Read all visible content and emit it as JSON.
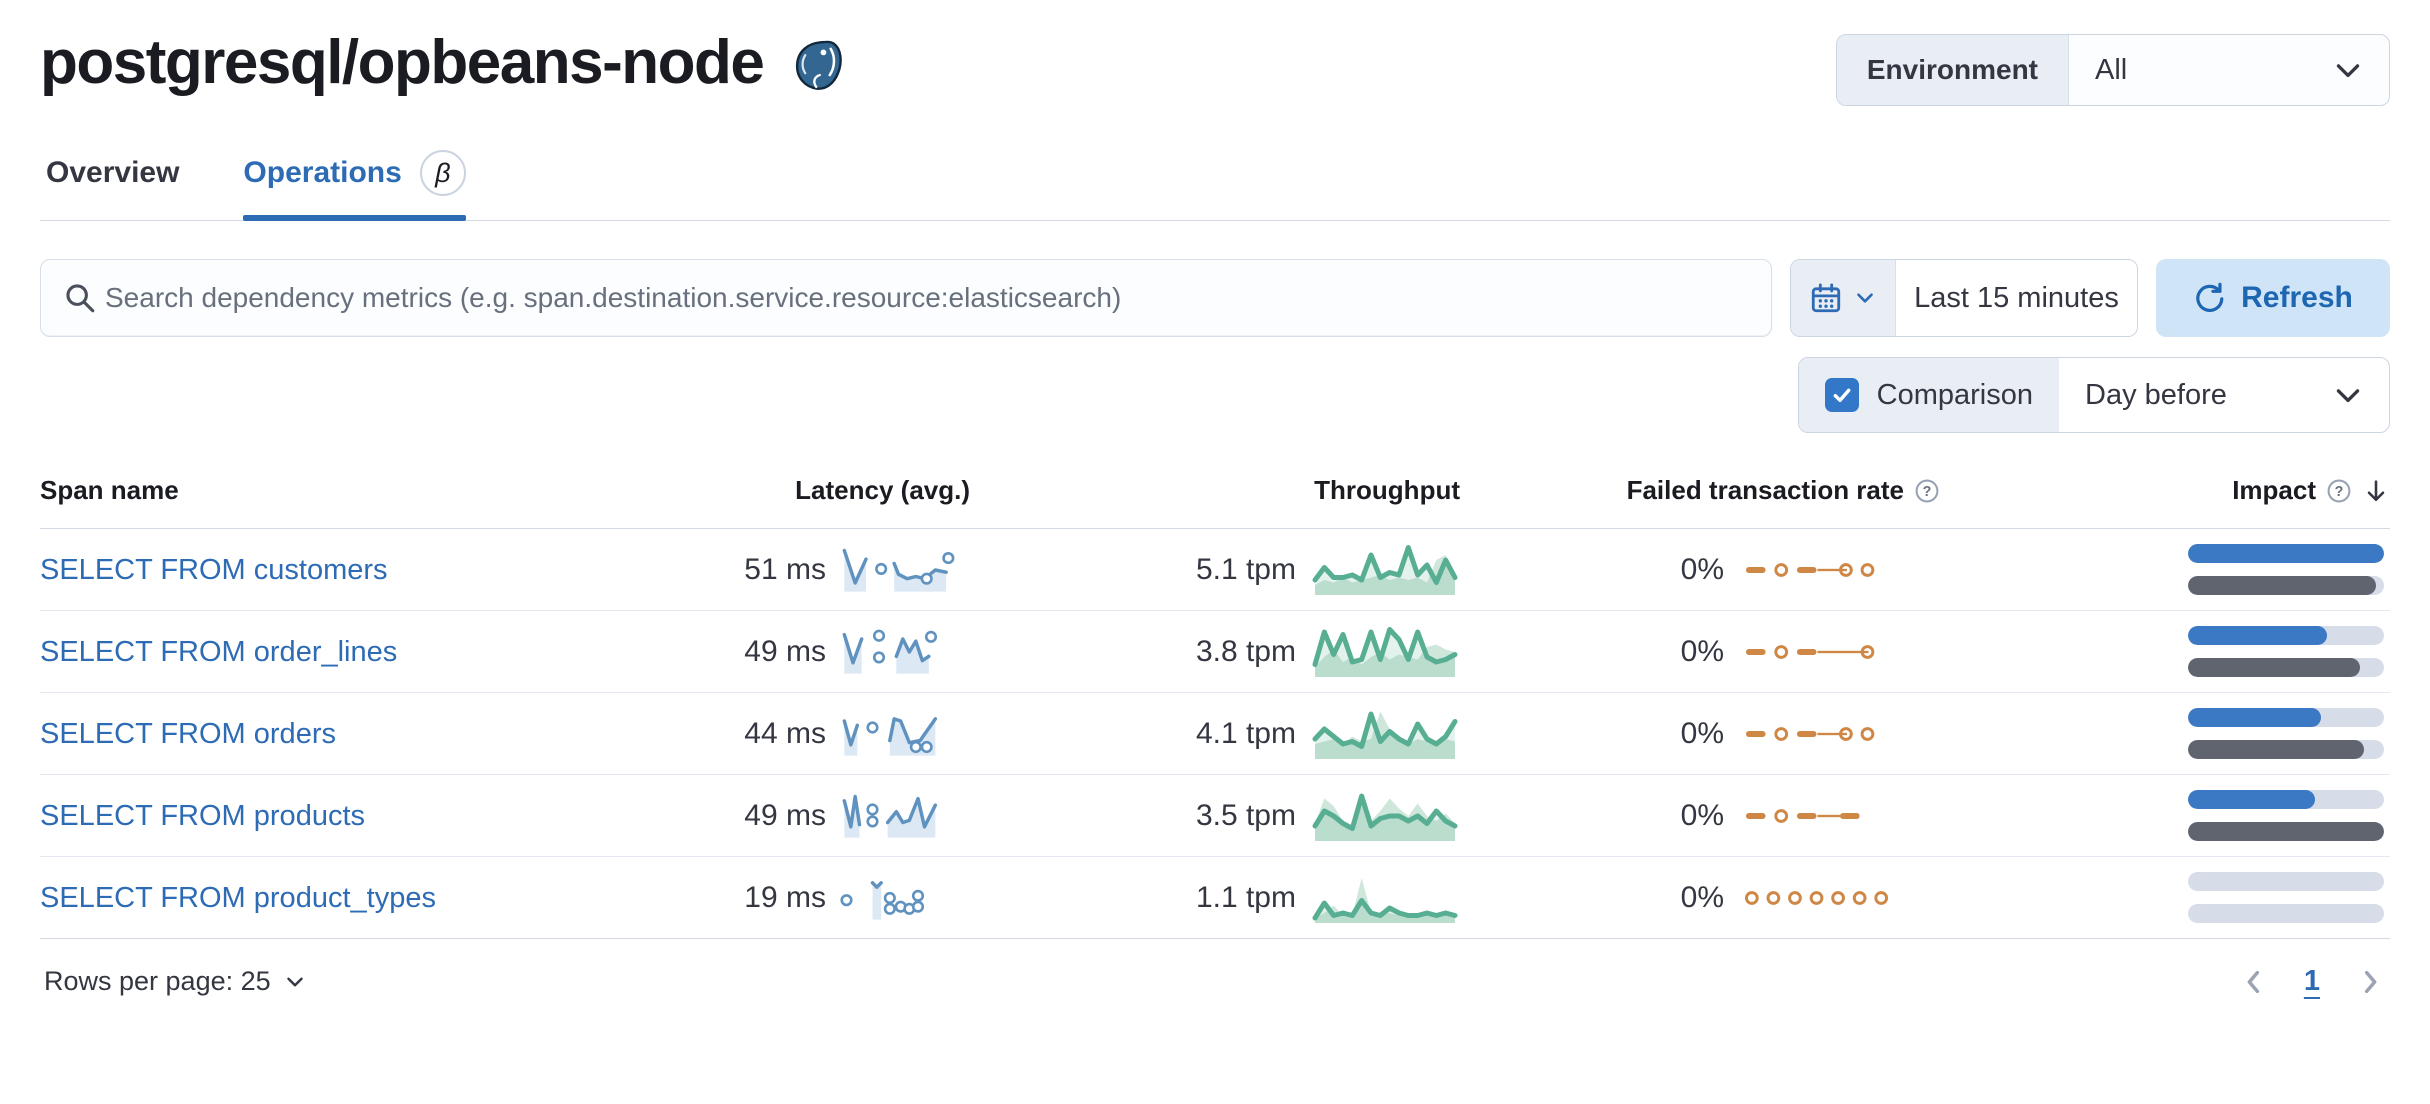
{
  "header": {
    "title": "postgresql/opbeans-node",
    "logo": "postgresql-elephant-icon",
    "environment_label": "Environment",
    "environment_value": "All"
  },
  "tabs": [
    {
      "label": "Overview",
      "active": false
    },
    {
      "label": "Operations",
      "active": true,
      "badge": "β"
    }
  ],
  "toolbar": {
    "search_placeholder": "Search dependency metrics (e.g. span.destination.service.resource:elasticsearch)",
    "time_range": "Last 15 minutes",
    "refresh_label": "Refresh",
    "comparison_label": "Comparison",
    "comparison_checked": true,
    "comparison_value": "Day before"
  },
  "table": {
    "columns": [
      "Span name",
      "Latency (avg.)",
      "Throughput",
      "Failed transaction rate",
      "Impact"
    ],
    "rows": [
      {
        "span_name": "SELECT FROM customers",
        "latency": "51 ms",
        "throughput": "5.1 tpm",
        "failed_rate": "0%",
        "impact_current": 100,
        "impact_previous": 96,
        "latency_spark": {
          "segments": [
            [
              [
                4,
                4
              ],
              [
                14,
                34
              ],
              [
                24,
                12
              ]
            ],
            [
              [
                50,
                16
              ],
              [
                54,
                26
              ],
              [
                62,
                30
              ],
              [
                70,
                28
              ],
              [
                78,
                30
              ],
              [
                88,
                22
              ],
              [
                98,
                24
              ]
            ]
          ],
          "dots": [
            [
              38,
              21
            ],
            [
              80,
              30
            ],
            [
              100,
              11
            ]
          ]
        },
        "throughput_spark": {
          "current": [
            30,
            20,
            28,
            28,
            26,
            30,
            10,
            28,
            24,
            26,
            4,
            26,
            18,
            32,
            14,
            28
          ],
          "comparison": [
            34,
            30,
            32,
            28,
            32,
            30,
            28,
            26,
            30,
            28,
            30,
            28,
            32,
            14,
            10,
            30
          ]
        },
        "failed_pattern": [
          "dash",
          "dot",
          "dash",
          "line",
          "dot",
          "dot"
        ]
      },
      {
        "span_name": "SELECT FROM order_lines",
        "latency": "49 ms",
        "throughput": "3.8 tpm",
        "failed_rate": "0%",
        "impact_current": 71,
        "impact_previous": 88,
        "latency_spark": {
          "segments": [
            [
              [
                4,
                6
              ],
              [
                12,
                32
              ],
              [
                20,
                10
              ]
            ],
            [
              [
                52,
                26
              ],
              [
                58,
                10
              ],
              [
                64,
                22
              ],
              [
                70,
                12
              ],
              [
                76,
                30
              ],
              [
                82,
                26
              ]
            ]
          ],
          "dots": [
            [
              36,
              7
            ],
            [
              36,
              27
            ],
            [
              84,
              8
            ]
          ]
        },
        "throughput_spark": {
          "current": [
            32,
            6,
            24,
            8,
            30,
            28,
            6,
            28,
            4,
            12,
            28,
            6,
            26,
            30,
            28,
            24
          ],
          "comparison": [
            34,
            26,
            20,
            30,
            26,
            32,
            26,
            22,
            28,
            24,
            26,
            28,
            18,
            16,
            20,
            22
          ]
        },
        "failed_pattern": [
          "dash",
          "dot",
          "dash",
          "longline",
          "dot"
        ]
      },
      {
        "span_name": "SELECT FROM orders",
        "latency": "44 ms",
        "throughput": "4.1 tpm",
        "failed_rate": "0%",
        "impact_current": 68,
        "impact_previous": 90,
        "latency_spark": {
          "segments": [
            [
              [
                4,
                10
              ],
              [
                10,
                32
              ],
              [
                16,
                14
              ]
            ],
            [
              [
                46,
                28
              ],
              [
                50,
                8
              ],
              [
                56,
                10
              ],
              [
                64,
                30
              ],
              [
                74,
                28
              ],
              [
                88,
                8
              ]
            ]
          ],
          "dots": [
            [
              30,
              16
            ],
            [
              70,
              34
            ],
            [
              80,
              34
            ]
          ]
        },
        "throughput_spark": {
          "current": [
            26,
            18,
            24,
            30,
            28,
            32,
            6,
            28,
            20,
            26,
            30,
            14,
            26,
            30,
            24,
            12
          ],
          "comparison": [
            30,
            28,
            26,
            30,
            24,
            28,
            26,
            4,
            18,
            28,
            30,
            26,
            28,
            30,
            26,
            28
          ]
        },
        "failed_pattern": [
          "dash",
          "dot",
          "dash",
          "line",
          "dot",
          "dot"
        ]
      },
      {
        "span_name": "SELECT FROM products",
        "latency": "49 ms",
        "throughput": "3.5 tpm",
        "failed_rate": "0%",
        "impact_current": 65,
        "impact_previous": 100,
        "latency_spark": {
          "segments": [
            [
              [
                4,
                8
              ],
              [
                10,
                32
              ],
              [
                14,
                4
              ],
              [
                18,
                30
              ]
            ],
            [
              [
                44,
                28
              ],
              [
                52,
                18
              ],
              [
                58,
                28
              ],
              [
                64,
                26
              ],
              [
                72,
                6
              ],
              [
                78,
                32
              ],
              [
                88,
                12
              ]
            ]
          ],
          "dots": [
            [
              30,
              16
            ],
            [
              30,
              27
            ]
          ]
        },
        "throughput_spark": {
          "current": [
            30,
            18,
            22,
            28,
            32,
            6,
            30,
            24,
            22,
            22,
            26,
            22,
            28,
            18,
            26,
            30
          ],
          "comparison": [
            28,
            8,
            14,
            26,
            30,
            10,
            26,
            18,
            8,
            16,
            22,
            12,
            22,
            26,
            20,
            28
          ]
        },
        "failed_pattern": [
          "dash",
          "dot",
          "dash",
          "line",
          "dash"
        ]
      },
      {
        "span_name": "SELECT FROM product_types",
        "latency": "19 ms",
        "throughput": "1.1 tpm",
        "failed_rate": "0%",
        "impact_current": 0,
        "impact_previous": 0,
        "latency_spark": {
          "segments": [
            [
              [
                30,
                8
              ],
              [
                34,
                12
              ],
              [
                38,
                8
              ]
            ]
          ],
          "dots": [
            [
              6,
              24
            ],
            [
              46,
              22
            ],
            [
              46,
              32
            ],
            [
              56,
              30
            ],
            [
              64,
              32
            ],
            [
              72,
              20
            ],
            [
              72,
              30
            ]
          ]
        },
        "throughput_spark": {
          "current": [
            38,
            26,
            36,
            34,
            36,
            24,
            34,
            36,
            30,
            34,
            36,
            36,
            34,
            36,
            34,
            36
          ],
          "comparison": [
            38,
            34,
            28,
            36,
            36,
            6,
            34,
            36,
            34,
            36,
            36,
            34,
            36,
            36,
            36,
            36
          ]
        },
        "failed_pattern": [
          "dot",
          "dot",
          "dot",
          "dot",
          "dot",
          "dot",
          "dot"
        ]
      }
    ]
  },
  "pagination": {
    "rows_per_page": "Rows per page: 25",
    "current_page": "1"
  },
  "colors": {
    "accent": "#2d6bb5",
    "latency_line": "#6092c0",
    "latency_fill": "#dce8f4",
    "throughput_line": "#57ae92",
    "throughput_comparison_fill": "#cfe6da",
    "throughput_current_fill": "rgba(87,174,146,0.16)",
    "failed_line": "#ce8745",
    "impact_current": "#3b79c4",
    "impact_previous": "#5f646e",
    "impact_track": "#d7dde8"
  }
}
